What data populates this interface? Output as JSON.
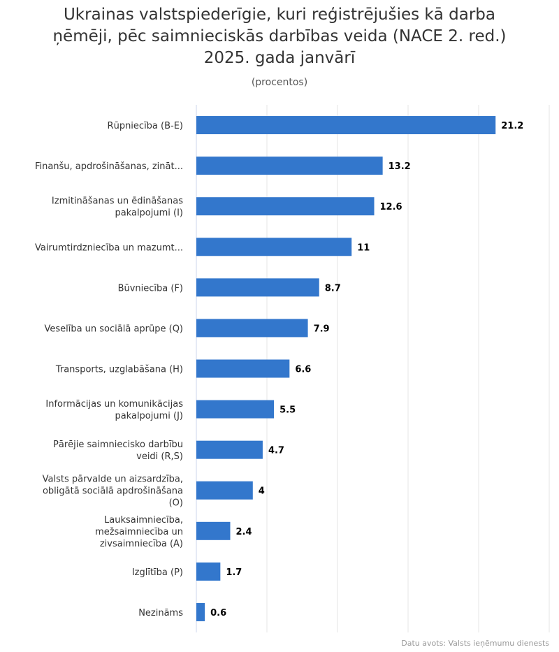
{
  "chart_data": {
    "type": "bar",
    "orientation": "horizontal",
    "title_lines": [
      "Ukrainas valstspiederīgie, kuri reģistrējušies kā darba",
      "ņēmēji, pēc saimnieciskās darbības veida (NACE 2. red.)",
      "2025. gada janvārī"
    ],
    "subtitle": "(procentos)",
    "categories": [
      [
        "Rūpniecība (B-E)"
      ],
      [
        "Finanšu, apdrošināšanas, zināt..."
      ],
      [
        "Izmitināšanas un ēdināšanas",
        "pakalpojumi (I)"
      ],
      [
        "Vairumtirdzniecība un mazumt..."
      ],
      [
        "Būvniecība (F)"
      ],
      [
        "Veselība un sociālā aprūpe (Q)"
      ],
      [
        "Transports, uzglabāšana (H)"
      ],
      [
        "Informācijas un komunikācijas",
        "pakalpojumi (J)"
      ],
      [
        "Pārējie saimniecisko darbību",
        "veidi (R,S)"
      ],
      [
        "Valsts pārvalde un aizsardzība,",
        "obligātā sociālā apdrošināšana",
        "(O)"
      ],
      [
        "Lauksaimniecība,",
        "mežsaimniecība un",
        "zivsaimniecība (A)"
      ],
      [
        "Izglītība (P)"
      ],
      [
        "Nezināms"
      ]
    ],
    "values": [
      21.2,
      13.2,
      12.6,
      11,
      8.7,
      7.9,
      6.6,
      5.5,
      4.7,
      4,
      2.4,
      1.7,
      0.6
    ],
    "value_labels": [
      "21.2",
      "13.2",
      "12.6",
      "11",
      "8.7",
      "7.9",
      "6.6",
      "5.5",
      "4.7",
      "4",
      "2.4",
      "1.7",
      "0.6"
    ],
    "xlim": [
      0,
      25
    ],
    "grid": true,
    "legend": "none",
    "bar_color": "#3377cc",
    "source": "Datu avots: Valsts ieņēmumu dienests"
  }
}
